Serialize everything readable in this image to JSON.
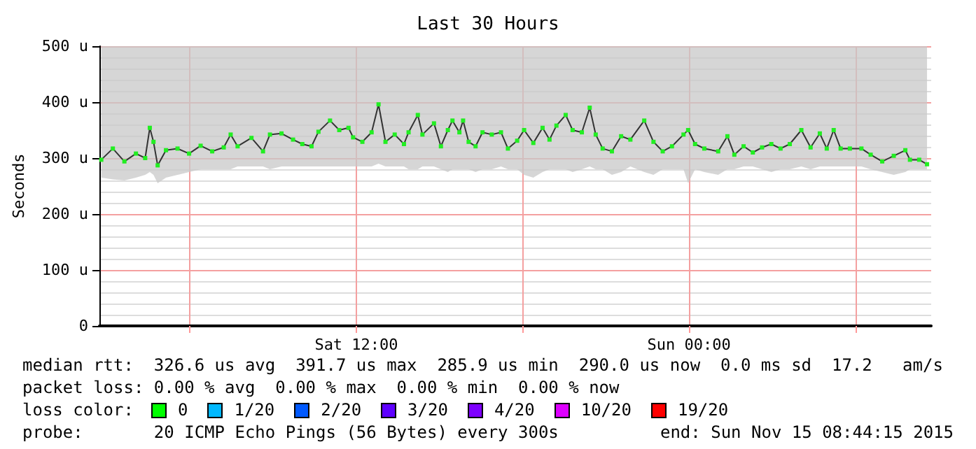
{
  "chart_data": {
    "type": "line",
    "title": "Last 30 Hours",
    "ylabel": "Seconds",
    "xlim": [
      "2015-11-14T02:44",
      "2015-11-15T08:44"
    ],
    "xticks": [
      {
        "value": "2015-11-14T06:00",
        "label": null
      },
      {
        "value": "2015-11-14T12:00",
        "label": "Sat 12:00"
      },
      {
        "value": "2015-11-14T18:00",
        "label": null
      },
      {
        "value": "2015-11-15T00:00",
        "label": "Sun 00:00"
      },
      {
        "value": "2015-11-15T06:00",
        "label": null
      }
    ],
    "ylim": [
      0,
      500
    ],
    "yticks": [
      0,
      {
        "value": 100,
        "label": "100 u"
      },
      {
        "value": 200,
        "label": "200 u"
      },
      {
        "value": 300,
        "label": "300 u"
      },
      {
        "value": 400,
        "label": "400 u"
      },
      {
        "value": 500,
        "label": "500 u"
      }
    ],
    "grid": true,
    "marker": "square",
    "line_style": "solid",
    "x": [
      "2015-11-14T02:48",
      "2015-11-14T03:13",
      "2015-11-14T03:38",
      "2015-11-14T04:03",
      "2015-11-14T04:23",
      "2015-11-14T04:33",
      "2015-11-14T04:41",
      "2015-11-14T04:50",
      "2015-11-14T05:08",
      "2015-11-14T05:33",
      "2015-11-14T05:58",
      "2015-11-14T06:23",
      "2015-11-14T06:48",
      "2015-11-14T07:13",
      "2015-11-14T07:28",
      "2015-11-14T07:43",
      "2015-11-14T08:13",
      "2015-11-14T08:38",
      "2015-11-14T08:53",
      "2015-11-14T09:18",
      "2015-11-14T09:43",
      "2015-11-14T10:03",
      "2015-11-14T10:23",
      "2015-11-14T10:38",
      "2015-11-14T11:03",
      "2015-11-14T11:23",
      "2015-11-14T11:43",
      "2015-11-14T11:53",
      "2015-11-14T12:13",
      "2015-11-14T12:33",
      "2015-11-14T12:48",
      "2015-11-14T13:03",
      "2015-11-14T13:23",
      "2015-11-14T13:43",
      "2015-11-14T13:53",
      "2015-11-14T14:13",
      "2015-11-14T14:23",
      "2015-11-14T14:48",
      "2015-11-14T15:03",
      "2015-11-14T15:18",
      "2015-11-14T15:28",
      "2015-11-14T15:43",
      "2015-11-14T15:51",
      "2015-11-14T16:03",
      "2015-11-14T16:18",
      "2015-11-14T16:33",
      "2015-11-14T16:53",
      "2015-11-14T17:13",
      "2015-11-14T17:28",
      "2015-11-14T17:48",
      "2015-11-14T18:03",
      "2015-11-14T18:23",
      "2015-11-14T18:43",
      "2015-11-14T18:58",
      "2015-11-14T19:13",
      "2015-11-14T19:33",
      "2015-11-14T19:48",
      "2015-11-14T20:08",
      "2015-11-14T20:25",
      "2015-11-14T20:38",
      "2015-11-14T20:53",
      "2015-11-14T21:13",
      "2015-11-14T21:33",
      "2015-11-14T21:53",
      "2015-11-14T22:23",
      "2015-11-14T22:43",
      "2015-11-14T23:03",
      "2015-11-14T23:23",
      "2015-11-14T23:48",
      "2015-11-14T23:58",
      "2015-11-15T00:13",
      "2015-11-15T00:33",
      "2015-11-15T01:03",
      "2015-11-15T01:23",
      "2015-11-15T01:38",
      "2015-11-15T01:58",
      "2015-11-15T02:18",
      "2015-11-15T02:38",
      "2015-11-15T02:58",
      "2015-11-15T03:18",
      "2015-11-15T03:38",
      "2015-11-15T04:03",
      "2015-11-15T04:23",
      "2015-11-15T04:43",
      "2015-11-15T04:58",
      "2015-11-15T05:13",
      "2015-11-15T05:28",
      "2015-11-15T05:48",
      "2015-11-15T06:13",
      "2015-11-15T06:33",
      "2015-11-15T06:58",
      "2015-11-15T07:23",
      "2015-11-15T07:48",
      "2015-11-15T07:58",
      "2015-11-15T08:18",
      "2015-11-15T08:35"
    ],
    "series": [
      {
        "color": "#22ee22",
        "values": [
          297,
          317,
          294,
          308,
          300,
          354,
          329,
          287,
          314,
          317,
          308,
          322,
          312,
          319,
          342,
          321,
          336,
          312,
          342,
          344,
          333,
          325,
          321,
          347,
          367,
          350,
          354,
          337,
          329,
          346,
          396,
          329,
          342,
          325,
          346,
          377,
          342,
          362,
          321,
          350,
          367,
          346,
          367,
          329,
          321,
          346,
          342,
          346,
          317,
          331,
          350,
          327,
          354,
          333,
          358,
          377,
          350,
          346,
          390,
          342,
          317,
          312,
          339,
          333,
          367,
          329,
          312,
          321,
          342,
          350,
          325,
          317,
          312,
          339,
          306,
          321,
          310,
          319,
          325,
          317,
          325,
          350,
          319,
          344,
          317,
          350,
          317,
          317,
          317,
          306,
          294,
          304,
          314,
          297,
          297,
          289
        ],
        "lower": [
          265,
          262,
          260,
          265,
          270,
          275,
          270,
          255,
          265,
          270,
          275,
          280,
          280,
          280,
          280,
          285,
          285,
          285,
          280,
          285,
          285,
          285,
          285,
          285,
          285,
          285,
          285,
          285,
          285,
          285,
          290,
          285,
          285,
          285,
          280,
          280,
          285,
          285,
          280,
          275,
          280,
          280,
          280,
          280,
          275,
          280,
          280,
          285,
          280,
          280,
          270,
          265,
          275,
          280,
          280,
          280,
          275,
          280,
          285,
          280,
          280,
          270,
          275,
          285,
          275,
          270,
          280,
          280,
          280,
          255,
          280,
          275,
          270,
          280,
          280,
          285,
          285,
          280,
          275,
          280,
          280,
          285,
          280,
          285,
          285,
          285,
          285,
          285,
          285,
          280,
          275,
          270,
          275,
          280,
          280,
          280
        ],
        "upper": [
          500,
          500,
          500,
          500,
          500,
          500,
          500,
          500,
          500,
          500,
          500,
          500,
          500,
          500,
          500,
          500,
          500,
          500,
          500,
          500,
          500,
          500,
          500,
          500,
          500,
          500,
          500,
          500,
          500,
          500,
          500,
          500,
          500,
          500,
          500,
          500,
          500,
          500,
          500,
          500,
          500,
          500,
          500,
          500,
          500,
          500,
          500,
          500,
          500,
          500,
          500,
          500,
          500,
          500,
          500,
          500,
          500,
          500,
          500,
          500,
          500,
          500,
          500,
          500,
          500,
          500,
          500,
          500,
          500,
          500,
          500,
          500,
          500,
          500,
          500,
          500,
          500,
          500,
          500,
          500,
          500,
          500,
          500,
          500,
          500,
          500,
          500,
          500,
          500,
          500,
          500,
          500,
          500,
          500,
          500,
          500
        ]
      }
    ],
    "annotations": [
      "median rtt:  326.6 us avg  391.7 us max  285.9 us min  290.0 us now  0.0 ms sd  17.2   am/s",
      "packet loss: 0.00 % avg  0.00 % max  0.00 % min  0.00 % now",
      "loss color:",
      "0",
      "1/20",
      "2/20",
      "3/20",
      "4/20",
      "10/20",
      "19/20",
      "probe:       20 ICMP Echo Pings (56 Bytes) every 300s",
      "end: Sun Nov 15 08:44:15 2015"
    ]
  }
}
